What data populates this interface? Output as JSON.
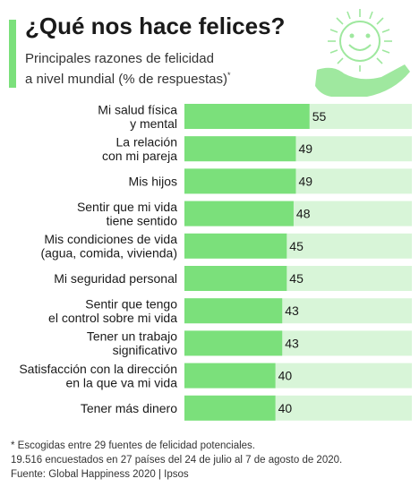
{
  "header": {
    "title": "¿Qué nos hace felices?",
    "subtitle_line1": "Principales razones de felicidad",
    "subtitle_line2": "a nivel mundial (% de respuestas)",
    "subtitle_mark": "*"
  },
  "chart_data": {
    "type": "bar",
    "orientation": "horizontal",
    "categories": [
      [
        "Mi salud física",
        "y mental"
      ],
      [
        "La relación",
        "con mi pareja"
      ],
      [
        "Mis hijos"
      ],
      [
        "Sentir que mi vida",
        "tiene sentido"
      ],
      [
        "Mis condiciones de vida",
        "(agua, comida, vivienda)"
      ],
      [
        "Mi seguridad personal"
      ],
      [
        "Sentir que tengo",
        "el control sobre mi vida"
      ],
      [
        "Tener un trabajo",
        "significativo"
      ],
      [
        "Satisfacción con la dirección",
        "en la que va mi vida"
      ],
      [
        "Tener más dinero"
      ]
    ],
    "values": [
      55,
      49,
      49,
      48,
      45,
      45,
      43,
      43,
      40,
      40
    ],
    "xlim": [
      0,
      100
    ],
    "grid": false,
    "colors": {
      "bar": "#7be07b",
      "track": "#d8f5d8"
    }
  },
  "footnote": {
    "line1": "* Escogidas entre 29 fuentes de felicidad potenciales.",
    "line2": "19.516 encuestados en 27 países del 24 de julio al 7 de agosto de 2020.",
    "line3": "Fuente: Global Happiness 2020 | Ipsos"
  },
  "decoration": {
    "icon": "smiling-sun-in-hand-icon",
    "color": "#9fe89f"
  }
}
